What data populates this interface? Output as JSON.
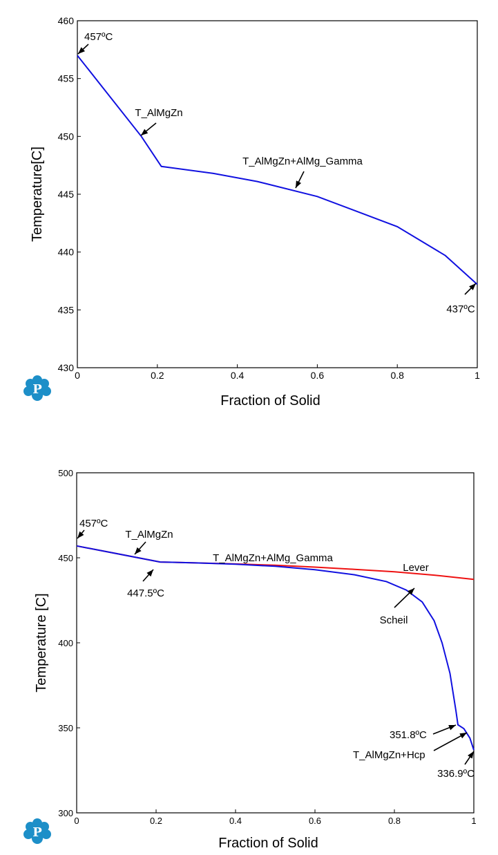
{
  "chart_data": [
    {
      "type": "line",
      "xlabel": "Fraction of Solid",
      "ylabel": "Temperature[C]",
      "xlim": [
        0,
        1
      ],
      "ylim": [
        430,
        460
      ],
      "xticks": [
        "0",
        "0.2",
        "0.4",
        "0.6",
        "0.8",
        "1"
      ],
      "yticks": [
        "430",
        "435",
        "440",
        "445",
        "450",
        "455",
        "460"
      ],
      "series": [
        {
          "color": "#1010e0",
          "x": [
            0,
            0.16,
            0.21,
            0.34,
            0.45,
            0.6,
            0.8,
            0.92,
            1.0
          ],
          "y": [
            457,
            450,
            447.4,
            446.8,
            446.1,
            444.8,
            442.2,
            439.7,
            437.2
          ]
        }
      ],
      "annotations": [
        {
          "text": "457ºC",
          "x": 0,
          "y": 457
        },
        {
          "text": "T_AlMgZn",
          "x": 0.16,
          "y": 450
        },
        {
          "text": "T_AlMgZn+AlMg_Gamma",
          "x": 0.54,
          "y": 445.3
        },
        {
          "text": "437ºC",
          "x": 1.0,
          "y": 437.3
        }
      ]
    },
    {
      "type": "line",
      "xlabel": "Fraction of Solid",
      "ylabel": "Temperature [C]",
      "xlim": [
        0,
        1
      ],
      "ylim": [
        300,
        500
      ],
      "xticks": [
        "0",
        "0.2",
        "0.4",
        "0.6",
        "0.8",
        "1"
      ],
      "yticks": [
        "300",
        "350",
        "400",
        "450",
        "500"
      ],
      "series": [
        {
          "name": "Lever",
          "color": "#ee1111",
          "x": [
            0,
            0.1,
            0.21,
            0.3,
            0.4,
            0.5,
            0.6,
            0.7,
            0.8,
            0.9,
            1.0
          ],
          "y": [
            457,
            452.5,
            447.5,
            447,
            446.4,
            445.6,
            444.5,
            443.2,
            441.8,
            439.8,
            437.3
          ]
        },
        {
          "name": "Scheil",
          "color": "#1010e0",
          "x": [
            0,
            0.1,
            0.21,
            0.3,
            0.4,
            0.5,
            0.6,
            0.7,
            0.78,
            0.83,
            0.87,
            0.9,
            0.92,
            0.94,
            0.955,
            0.96,
            0.975,
            0.99,
            1.0
          ],
          "y": [
            457,
            452.5,
            447.5,
            447,
            446.2,
            445,
            443,
            440,
            436,
            431,
            424,
            413,
            400,
            382,
            360,
            351.8,
            349.5,
            344,
            336.9
          ]
        }
      ],
      "annotations": [
        {
          "text": "457ºC",
          "x": 0,
          "y": 457
        },
        {
          "text": "T_AlMgZn",
          "x": 0.15,
          "y": 451
        },
        {
          "text": "447.5ºC",
          "x": 0.2,
          "y": 447.5
        },
        {
          "text": "T_AlMgZn+AlMg_Gamma",
          "x": 0.45,
          "y": 448
        },
        {
          "text": "Lever",
          "x": 0.87,
          "y": 442
        },
        {
          "text": "Scheil",
          "x": 0.85,
          "y": 431.5
        },
        {
          "text": "351.8ºC",
          "x": 0.96,
          "y": 351.8
        },
        {
          "text": "T_AlMgZn+Hcp",
          "x": 0.985,
          "y": 347
        },
        {
          "text": "336.9ºC",
          "x": 1.0,
          "y": 337
        }
      ]
    }
  ]
}
